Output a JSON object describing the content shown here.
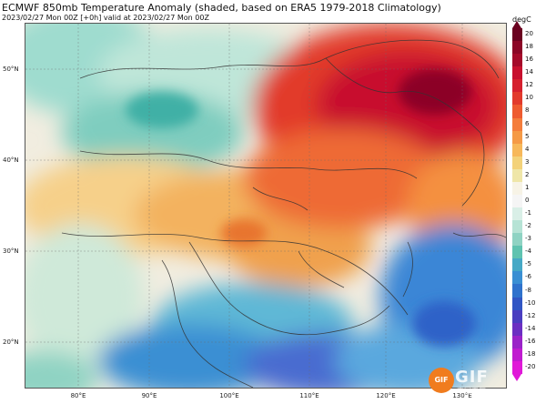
{
  "header": {
    "title": "ECMWF 850mb Temperature Anomaly (shaded, based on ERA5 1979-2018 Climatology)",
    "subtitle": "2023/02/27 Mon 00Z [+0h] valid at 2023/02/27 Mon 00Z"
  },
  "map": {
    "y_ticks": [
      "50°N",
      "40°N",
      "30°N",
      "20°N"
    ],
    "x_ticks": [
      "80°E",
      "90°E",
      "100°E",
      "110°E",
      "120°E",
      "130°E"
    ],
    "colors": {
      "strong_warm": "#c8102e",
      "warm": "#e8432b",
      "mild": "#f5a14a",
      "neutral": "#f7f3e6",
      "cool": "#5fc3b0",
      "cold": "#2f7fd0",
      "border": "#333333"
    }
  },
  "colorbar": {
    "unit": "degC",
    "labels": [
      "20",
      "18",
      "16",
      "14",
      "12",
      "10",
      "8",
      "6",
      "5",
      "4",
      "3",
      "2",
      "1",
      "0",
      "-1",
      "-2",
      "-3",
      "-4",
      "-5",
      "-6",
      "-8",
      "-10",
      "-12",
      "-14",
      "-16",
      "-18",
      "-20"
    ],
    "colors": [
      "#6b0220",
      "#8c0626",
      "#a50a2a",
      "#c8102e",
      "#d6202e",
      "#e23a2c",
      "#ee5b30",
      "#f47d3c",
      "#f59a46",
      "#f7b85a",
      "#f3d27a",
      "#efe6a8",
      "#f7f3e6",
      "#f5f5f5",
      "#d9efe7",
      "#b6e3d5",
      "#8fd3c3",
      "#5fc3b0",
      "#46a9c6",
      "#3a8fd3",
      "#2f72cc",
      "#3156c4",
      "#4a3ec0",
      "#6b2fc2",
      "#9a23c8",
      "#c01bd0",
      "#e019d8"
    ]
  },
  "watermark": {
    "badge": "GIF",
    "text": "GIF",
    "subtext": "中国天气"
  }
}
